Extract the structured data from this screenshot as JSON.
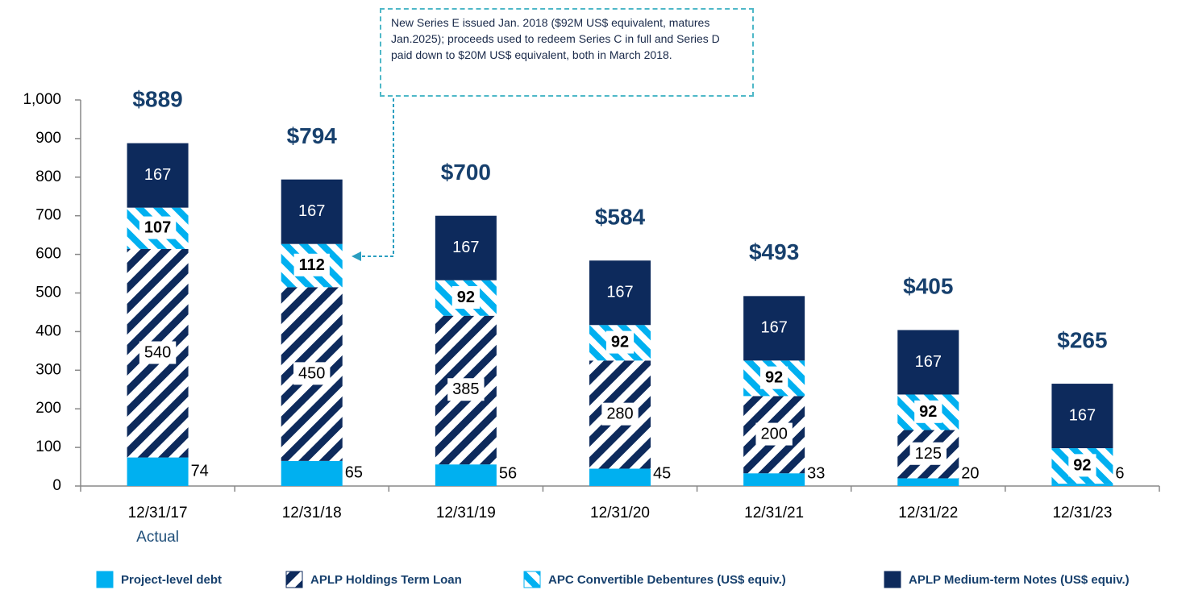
{
  "chart_data": {
    "type": "stacked_bar",
    "categories": [
      "12/31/17",
      "12/31/18",
      "12/31/19",
      "12/31/20",
      "12/31/21",
      "12/31/22",
      "12/31/23"
    ],
    "category_sublabels": [
      "Actual",
      null,
      null,
      null,
      null,
      null,
      null
    ],
    "series": [
      {
        "name": "Project-level debt",
        "color": "#00b0f0",
        "values": [
          74,
          65,
          56,
          45,
          33,
          20,
          6
        ]
      },
      {
        "name": "APLP Holdings Term Loan",
        "color": "#0d2a5c",
        "hatch": true,
        "values": [
          540,
          450,
          385,
          280,
          200,
          125,
          0
        ]
      },
      {
        "name": "APC Convertible Debentures (US$ equiv.)",
        "color": "#00b0f0",
        "hatch": true,
        "values": [
          107,
          112,
          92,
          92,
          92,
          92,
          92
        ]
      },
      {
        "name": "APLP Medium-term Notes (US$ equiv.)",
        "color": "#0d2a5c",
        "values": [
          167,
          167,
          167,
          167,
          167,
          167,
          167
        ]
      }
    ],
    "totals": [
      889,
      794,
      700,
      584,
      493,
      405,
      265
    ],
    "total_labels": [
      "$889",
      "$794",
      "$700",
      "$584",
      "$493",
      "$405",
      "$265"
    ],
    "ylim": [
      0,
      1000
    ],
    "yticks": [
      0,
      100,
      200,
      300,
      400,
      500,
      600,
      700,
      800,
      900,
      {
        "value": 1000,
        "label": "1,000"
      }
    ],
    "grid": false,
    "legend": "bottom",
    "annotation": "New Series E issued Jan. 2018 ($92M US$ equivalent, matures Jan.2025); proceeds used to redeem Series C in full and Series D paid down to $20M US$ equivalent, both in March 2018."
  }
}
